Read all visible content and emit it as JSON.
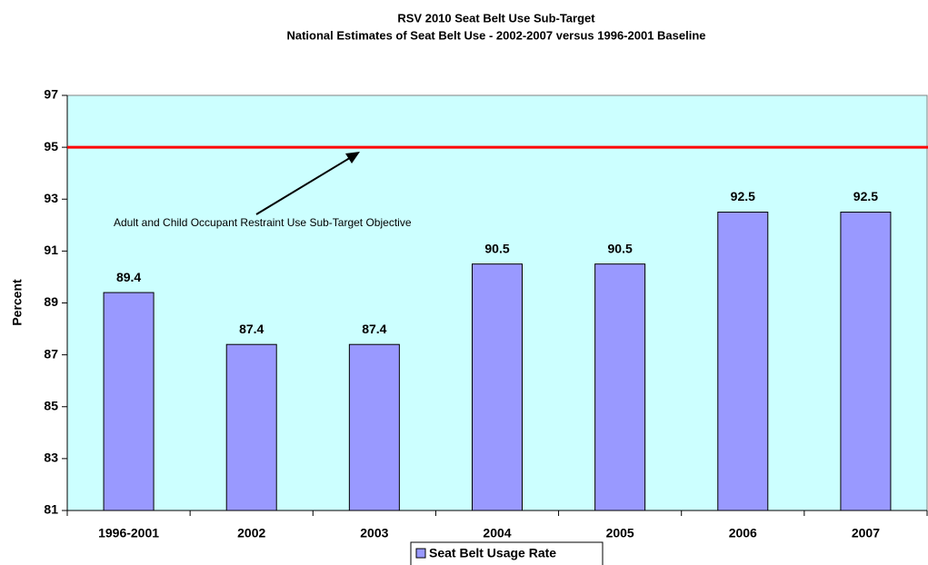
{
  "chart_data": {
    "type": "bar",
    "title": "RSV 2010 Seat Belt Use Sub-Target",
    "subtitle": "National Estimates of Seat Belt Use - 2002-2007 versus 1996-2001 Baseline",
    "y_label": "Percent",
    "categories": [
      "1996-2001",
      "2002",
      "2003",
      "2004",
      "2005",
      "2006",
      "2007"
    ],
    "series": [
      {
        "name": "Seat Belt Usage Rate",
        "color": "#9999ff",
        "values": [
          89.4,
          87.4,
          87.4,
          90.5,
          90.5,
          92.5,
          92.5
        ]
      }
    ],
    "target": {
      "value": 95,
      "color": "#ff0000"
    },
    "annotation": "Adult and Child Occupant Restraint Use Sub-Target Objective",
    "ylim": [
      81,
      97
    ],
    "yticks": [
      81,
      83,
      85,
      87,
      89,
      91,
      93,
      95,
      97
    ],
    "plot_background": "#ccffff",
    "legend": "bottom"
  }
}
